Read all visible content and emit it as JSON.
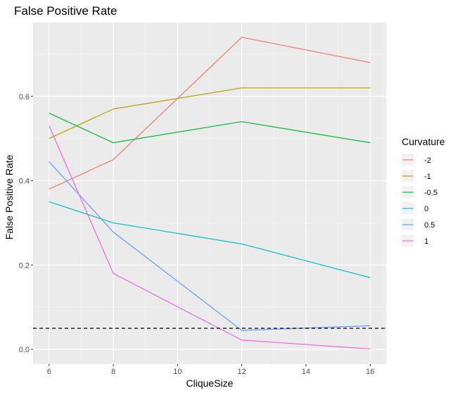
{
  "chart_data": {
    "type": "line",
    "title": "False Positive Rate",
    "xlabel": "CliqueSize",
    "ylabel": "False Positive Rate",
    "x": [
      6,
      8,
      12,
      16
    ],
    "xlim": [
      5.5,
      16.5
    ],
    "ylim": [
      -0.035,
      0.775
    ],
    "x_ticks": [
      6,
      8,
      10,
      12,
      14,
      16
    ],
    "x_tick_labels": [
      "6",
      "8",
      "10",
      "12",
      "14",
      "16"
    ],
    "y_ticks": [
      0.0,
      0.2,
      0.4,
      0.6
    ],
    "y_tick_labels": [
      "0.0",
      "0.2",
      "0.4",
      "0.6"
    ],
    "grid": true,
    "reference_line": {
      "y": 0.05,
      "style": "dashed",
      "color": "#000000"
    },
    "legend": {
      "title": "Curvature",
      "placement": "right"
    },
    "series": [
      {
        "name": "-2",
        "color": "#F8766D",
        "values": [
          0.38,
          0.45,
          0.74,
          0.68
        ]
      },
      {
        "name": "-1",
        "color": "#B79F00",
        "values": [
          0.5,
          0.57,
          0.62,
          0.62
        ]
      },
      {
        "name": "-0.5",
        "color": "#00BA38",
        "values": [
          0.56,
          0.49,
          0.54,
          0.49
        ]
      },
      {
        "name": "0",
        "color": "#00BFC4",
        "values": [
          0.35,
          0.3,
          0.25,
          0.17
        ]
      },
      {
        "name": "0.5",
        "color": "#619CFF",
        "values": [
          0.445,
          0.278,
          0.045,
          0.056
        ]
      },
      {
        "name": "1",
        "color": "#F564E3",
        "values": [
          0.53,
          0.18,
          0.022,
          0.001
        ]
      }
    ]
  }
}
